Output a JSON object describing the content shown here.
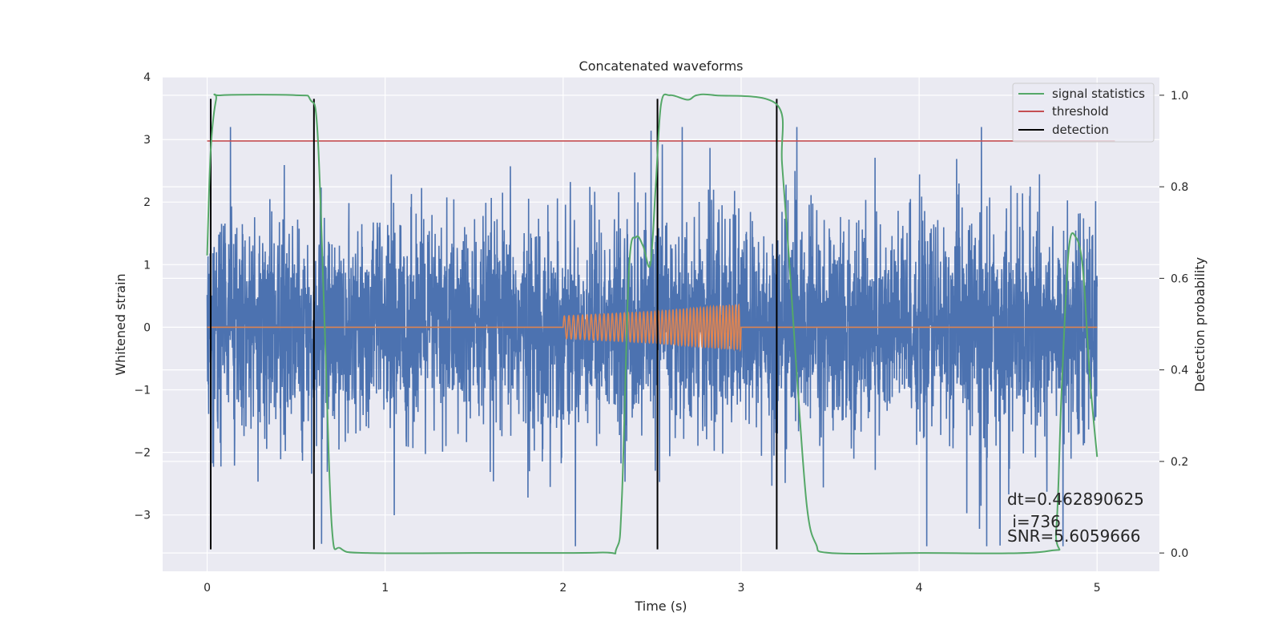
{
  "chart_data": {
    "type": "line",
    "title": "Concatenated waveforms",
    "xlabel": "Time (s)",
    "ylabel_left": "Whitened strain",
    "ylabel_right": "Detection probability",
    "xlim": [
      -0.25,
      5.35
    ],
    "ylim_left": [
      -3.9,
      4.0
    ],
    "ylim_right": [
      -0.04,
      1.04
    ],
    "xticks": [
      0,
      1,
      2,
      3,
      4,
      5
    ],
    "yticks_left": [
      -3,
      -2,
      -1,
      0,
      1,
      2,
      3,
      4
    ],
    "yticks_right": [
      0.0,
      0.2,
      0.4,
      0.6,
      0.8,
      1.0
    ],
    "xtick_labels": [
      "0",
      "1",
      "2",
      "3",
      "4",
      "5"
    ],
    "ytick_labels_left": [
      "−3",
      "−2",
      "−1",
      "0",
      "1",
      "2",
      "3",
      "4"
    ],
    "ytick_labels_right": [
      "0.0",
      "0.2",
      "0.4",
      "0.6",
      "0.8",
      "1.0"
    ],
    "grid": true,
    "legend_position": "top-right",
    "series": [
      {
        "name": "",
        "axis": "left",
        "color": "#4c72b0",
        "kind": "noise",
        "x_range": [
          0,
          5
        ],
        "typical_abs": 1.0,
        "extreme_range": [
          -3.5,
          3.2
        ]
      },
      {
        "name": "",
        "axis": "left",
        "color": "#dd8452",
        "kind": "chirp",
        "x": [
          0,
          2.0,
          2.0,
          2.5,
          3.0,
          3.0,
          5.0
        ],
        "envelope": [
          0,
          0,
          0.18,
          0.25,
          0.36,
          0,
          0
        ]
      },
      {
        "name": "signal statistics",
        "axis": "right",
        "color": "#55a868",
        "x": [
          0.0,
          0.02,
          0.05,
          0.08,
          0.5,
          0.58,
          0.62,
          0.66,
          0.7,
          0.75,
          0.9,
          1.5,
          2.2,
          2.3,
          2.33,
          2.37,
          2.41,
          2.45,
          2.49,
          2.52,
          2.55,
          2.6,
          2.7,
          2.75,
          2.85,
          3.2,
          3.23,
          3.27,
          3.32,
          3.37,
          3.42,
          3.5,
          4.0,
          4.72,
          4.77,
          4.8,
          4.84,
          4.88,
          4.92,
          4.96,
          5.0
        ],
        "values": [
          0.65,
          0.88,
          0.99,
          1.0,
          1.0,
          0.99,
          0.92,
          0.5,
          0.06,
          0.01,
          0.0,
          0.0,
          0.001,
          0.01,
          0.12,
          0.62,
          0.69,
          0.67,
          0.63,
          0.8,
          0.98,
          1.0,
          0.99,
          1.0,
          1.0,
          0.98,
          0.85,
          0.64,
          0.35,
          0.1,
          0.02,
          0.0,
          0.0,
          0.004,
          0.05,
          0.35,
          0.66,
          0.69,
          0.62,
          0.38,
          0.21
        ]
      },
      {
        "name": "threshold",
        "axis": "right",
        "color": "#c44e52",
        "x": [
          0.0,
          5.1
        ],
        "values": [
          0.9,
          0.9
        ]
      },
      {
        "name": "detection",
        "axis": "left",
        "color": "#000000",
        "kind": "vlines",
        "x": [
          0.02,
          0.6,
          2.53,
          3.2
        ],
        "y_range": [
          -3.55,
          3.65
        ]
      }
    ],
    "annotations": {
      "dt": "dt=0.462890625",
      "i": " i=736",
      "snr": "SNR=5.6059666"
    }
  }
}
